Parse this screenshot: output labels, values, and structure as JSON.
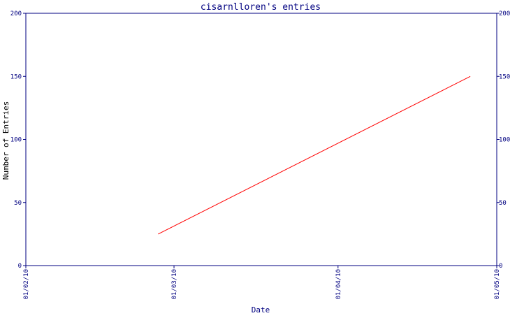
{
  "chart_data": {
    "type": "line",
    "title": "cisarnlloren's entries",
    "xlabel": "Date",
    "ylabel": "Number of Entries",
    "x_ticks": [
      "01/02/10",
      "01/03/10",
      "01/04/10",
      "01/05/10"
    ],
    "xlim": [
      "01/02/10",
      "01/05/10"
    ],
    "ylim": [
      0,
      200
    ],
    "y_ticks": [
      0,
      50,
      100,
      150,
      200
    ],
    "series": [
      {
        "points": [
          {
            "x": "2010-02-26",
            "y": 25
          },
          {
            "x": "2010-04-26",
            "y": 150
          }
        ]
      }
    ],
    "grid": false,
    "legend": "none",
    "colors": {
      "axis": "#000080",
      "title": "#000080",
      "tick_text": "#000080",
      "label_text": "#000080",
      "ylabel_text": "#000000",
      "series": "#ff0000"
    }
  }
}
